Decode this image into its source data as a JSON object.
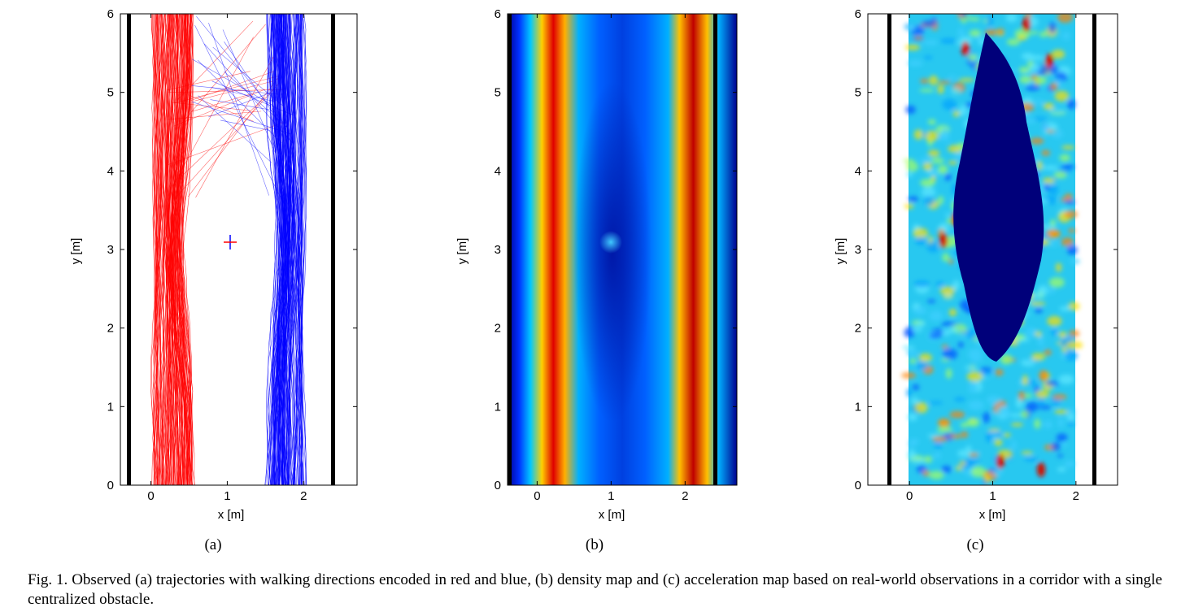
{
  "chart_data": [
    {
      "type": "line",
      "panel_label": "(a)",
      "xlabel": "x [m]",
      "ylabel": "y [m]",
      "xlim": [
        -0.4,
        2.7
      ],
      "ylim": [
        0,
        6
      ],
      "xticks": [
        "0",
        "1",
        "2"
      ],
      "yticks": [
        "0",
        "1",
        "2",
        "3",
        "4",
        "5",
        "6"
      ],
      "walls_x": [
        -0.2,
        2.4
      ],
      "obstacle": {
        "x": 1.1,
        "y": 3.1
      },
      "series": [
        {
          "color": "#ff0000",
          "description_band_x": [
            0.05,
            0.55
          ],
          "obstacle_bypass_x": 0.6
        },
        {
          "color": "#0000ff",
          "description_band_x": [
            1.55,
            2.0
          ],
          "obstacle_bypass_x": 1.55
        }
      ]
    },
    {
      "type": "heatmap",
      "panel_label": "(b)",
      "xlabel": "x [m]",
      "ylabel": "y [m]",
      "xlim": [
        -0.4,
        2.7
      ],
      "ylim": [
        0,
        6
      ],
      "xticks": [
        "0",
        "1",
        "2"
      ],
      "yticks": [
        "0",
        "1",
        "2",
        "3",
        "4",
        "5",
        "6"
      ],
      "walls_x": [
        -0.2,
        2.4
      ],
      "colormap": "jet",
      "high_density_lanes_x": [
        0.25,
        1.9
      ],
      "obstacle": {
        "x": 1.1,
        "y": 3.1
      }
    },
    {
      "type": "heatmap",
      "panel_label": "(c)",
      "xlabel": "x [m]",
      "ylabel": "y [m]",
      "xlim": [
        -0.5,
        2.5
      ],
      "ylim": [
        0,
        6
      ],
      "xticks": [
        "0",
        "1",
        "2"
      ],
      "yticks": [
        "0",
        "1",
        "2",
        "3",
        "4",
        "5",
        "6"
      ],
      "walls_x": [
        -0.2,
        2.35
      ],
      "colormap": "jet",
      "data_x_range": [
        0.05,
        2.15
      ],
      "low_region_center": {
        "x": 1.15,
        "y": 3.3
      }
    }
  ],
  "caption": "Fig. 1.  Observed (a) trajectories with walking directions encoded in red and blue, (b) density map and (c) acceleration map based on real-world observations in a corridor with a single centralized obstacle."
}
